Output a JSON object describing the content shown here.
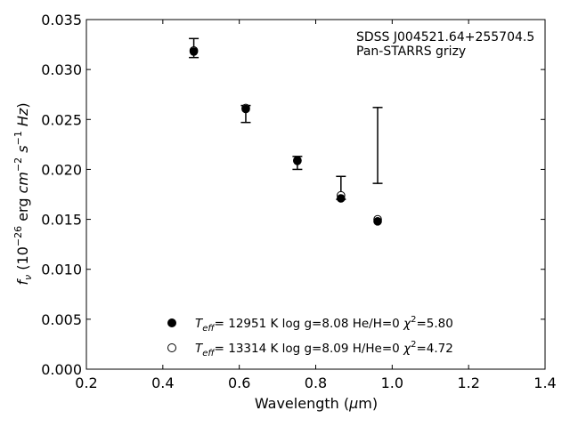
{
  "chart_data": {
    "type": "scatter",
    "title": "",
    "annotation_lines": [
      "SDSS J004521.64+255704.5",
      "Pan-STARRS grizy"
    ],
    "xlabel": {
      "text": "Wavelength (",
      "mu": "μ",
      "unit": "m)"
    },
    "ylabel": {
      "f": "f",
      "nu": "ν",
      "rest": " (10",
      "exp1": "−26",
      "erg": " erg ",
      "cm": "cm",
      "exp2": "−2",
      "s": " s",
      "exp3": "−1",
      "hz": " Hz",
      "close": ")"
    },
    "xlim": [
      0.2,
      1.4
    ],
    "ylim": [
      0.0,
      0.035
    ],
    "x_ticks": [
      0.2,
      0.4,
      0.6,
      0.8,
      1.0,
      1.2,
      1.4
    ],
    "x_tick_labels": [
      "0.2",
      "0.4",
      "0.6",
      "0.8",
      "1.0",
      "1.2",
      "1.4"
    ],
    "y_ticks": [
      0.0,
      0.005,
      0.01,
      0.015,
      0.02,
      0.025,
      0.03,
      0.035
    ],
    "y_tick_labels": [
      "0.000",
      "0.005",
      "0.010",
      "0.015",
      "0.020",
      "0.025",
      "0.030",
      "0.035"
    ],
    "grid": false,
    "legend_placement": "lower-center",
    "observed": {
      "x": [
        0.481,
        0.617,
        0.752,
        0.866,
        0.962
      ],
      "y": [
        0.0321,
        0.026,
        0.02065,
        null,
        0.0224
      ],
      "yerr_low": [
        0.0312,
        0.0247,
        0.02,
        0.017,
        0.0186
      ],
      "yerr_high": [
        0.0331,
        0.0264,
        0.0213,
        0.0193,
        0.0262
      ]
    },
    "series": [
      {
        "label": {
          "teff": "T",
          "eff": "eff",
          "text": "= 12951 K  log g=8.08  He/H=0  ",
          "chi": "χ",
          "two": "2",
          "val": "=5.80"
        },
        "marker": "filled-circle",
        "x": [
          0.481,
          0.617,
          0.752,
          0.866,
          0.962
        ],
        "y": [
          0.0318,
          0.02605,
          0.0209,
          0.0171,
          0.0148
        ]
      },
      {
        "label": {
          "teff": "T",
          "eff": "eff",
          "text": "= 13314 K  log g=8.09  H/He=0  ",
          "chi": "χ",
          "two": "2",
          "val": "=4.72"
        },
        "marker": "open-circle",
        "x": [
          0.481,
          0.617,
          0.752,
          0.866,
          0.962
        ],
        "y": [
          0.0319,
          0.02615,
          0.02085,
          0.0174,
          0.015
        ]
      }
    ],
    "colors": {
      "marker": "#000000",
      "axes": "#000000",
      "background": "#ffffff"
    }
  }
}
